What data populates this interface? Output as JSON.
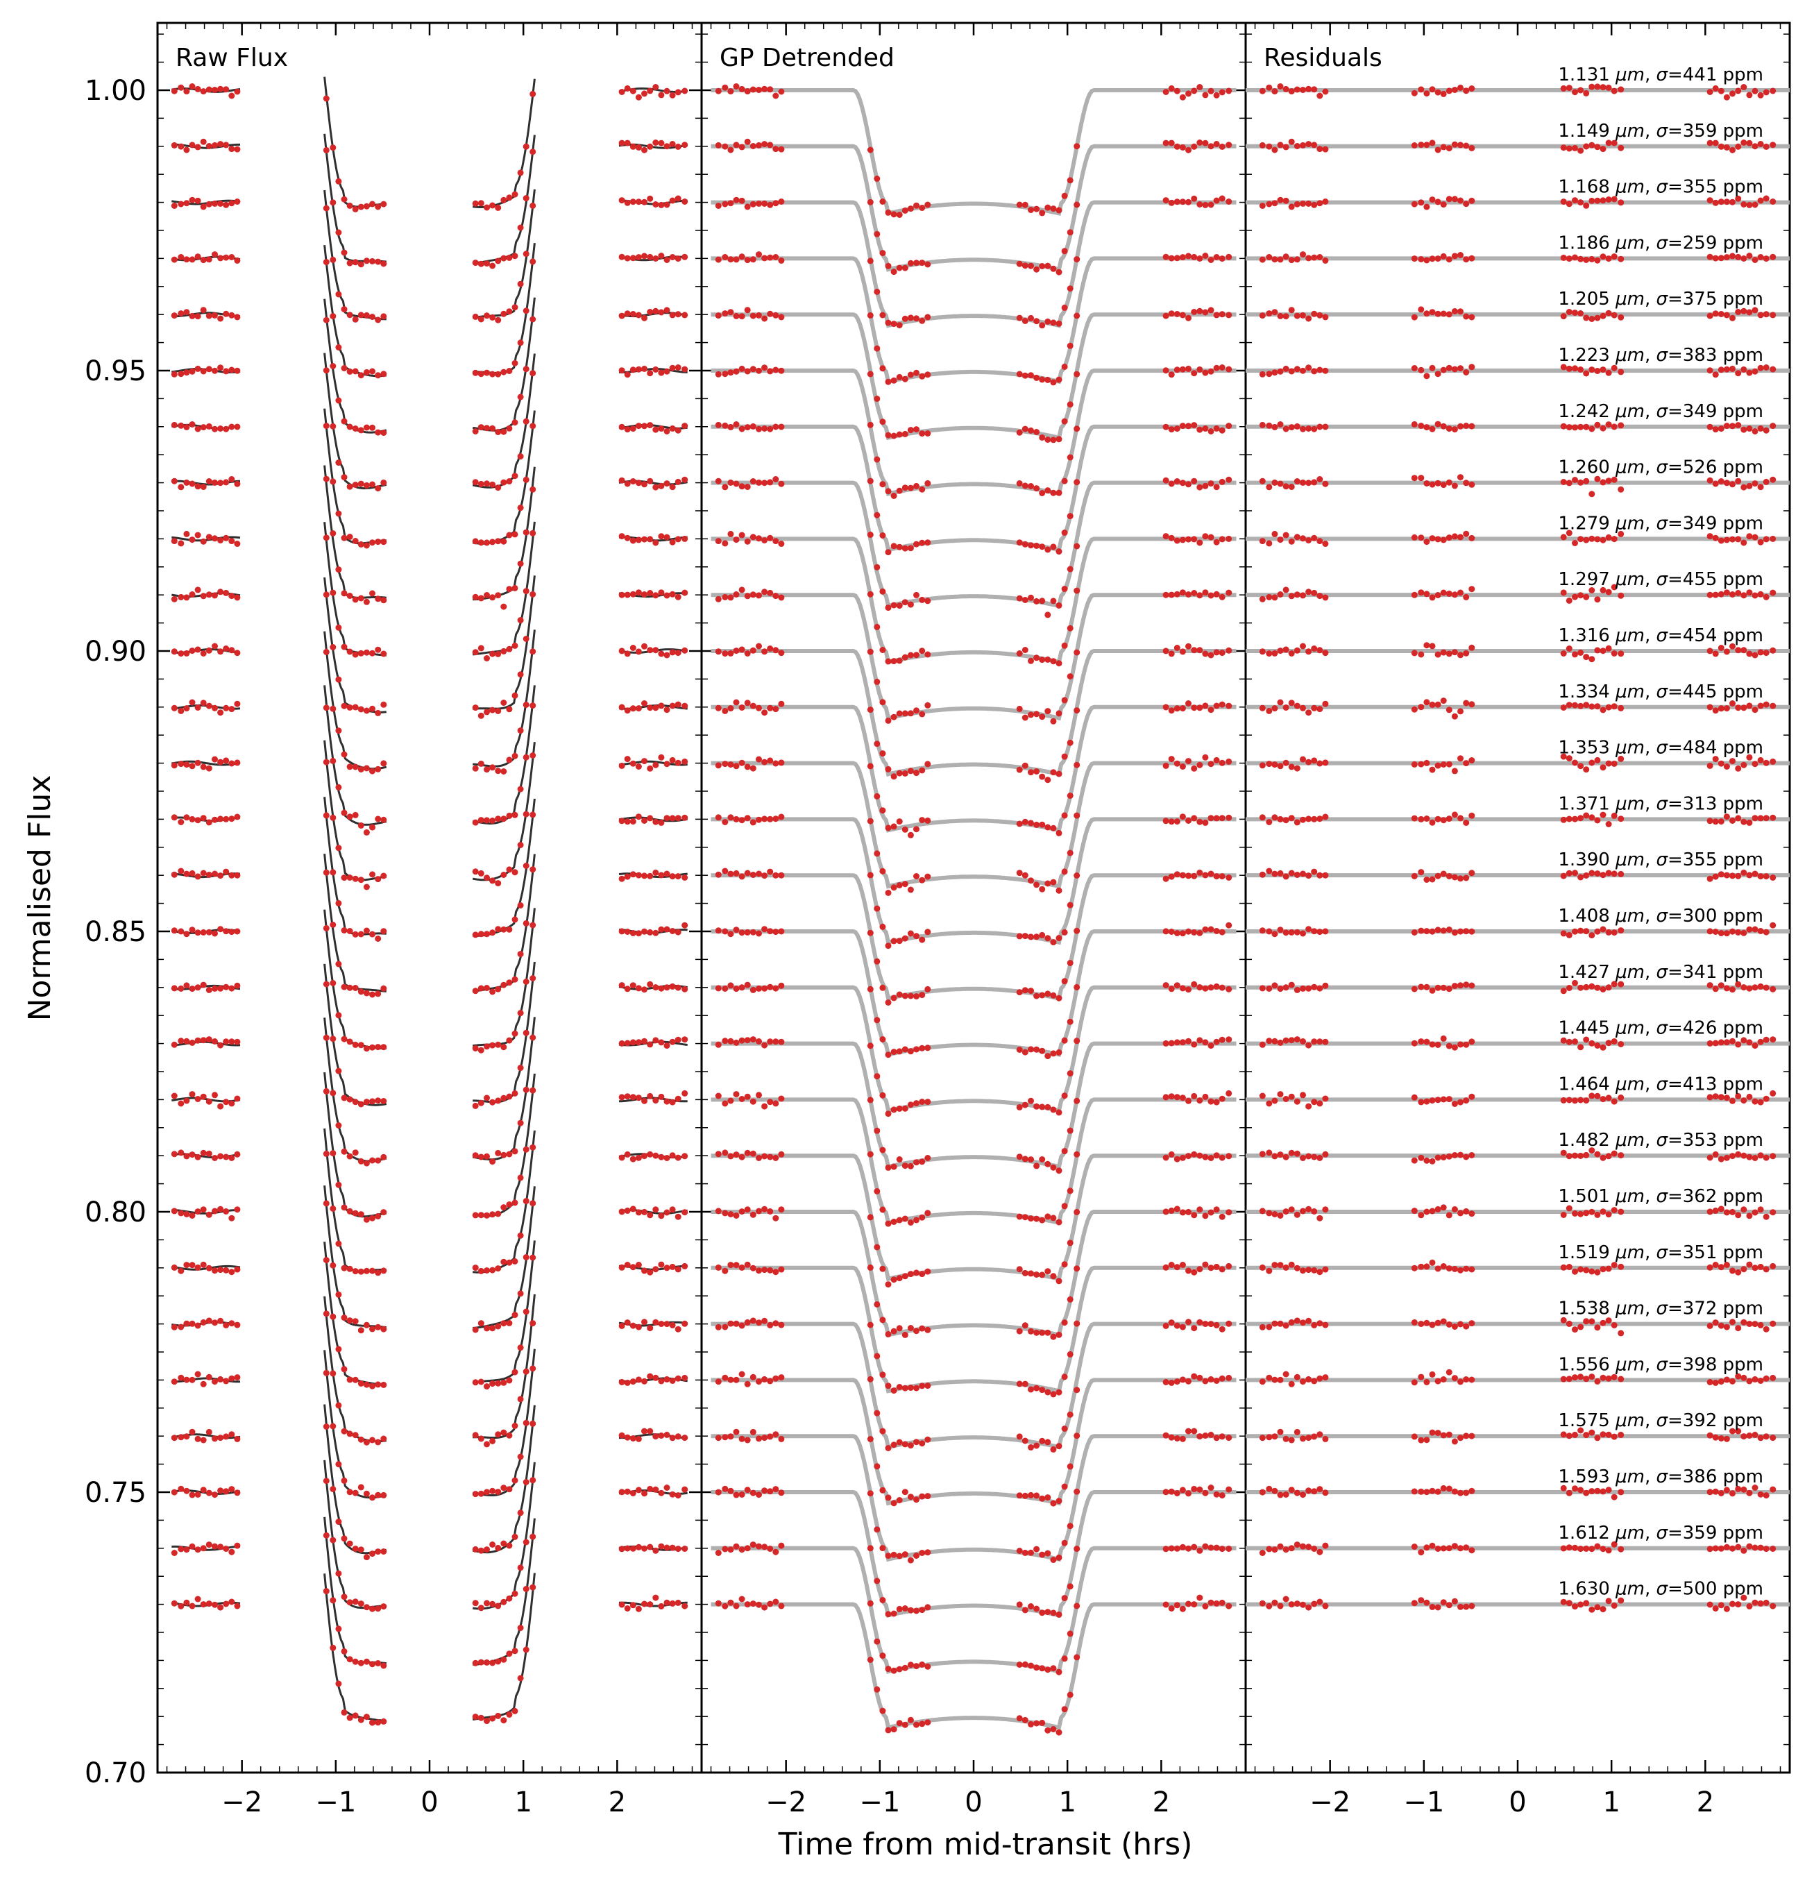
{
  "figure": {
    "ylabel": "Normalised Flux",
    "xlabel": "Time from mid-transit (hrs)"
  },
  "chart_data": {
    "type": "scatter",
    "description_of_series": "Stacked spectroscopic light curves, one per wavelength bin, each offset by -0.01 in normalised flux; raw flux with GP fit, GP-detrended flux with transit model, and residuals.",
    "panels": [
      {
        "title": "Raw Flux"
      },
      {
        "title": "GP Detrended"
      },
      {
        "title": "Residuals"
      }
    ],
    "xlim": [
      -2.9,
      2.9
    ],
    "ylim": [
      0.7,
      1.012
    ],
    "x_ticks": [
      -2,
      -1,
      0,
      1,
      2
    ],
    "x_tick_labels": [
      "−2",
      "−1",
      "0",
      "1",
      "2"
    ],
    "y_ticks": [
      0.7,
      0.75,
      0.8,
      0.85,
      0.9,
      0.95,
      1.0
    ],
    "y_tick_labels": [
      "0.70",
      "0.75",
      "0.80",
      "0.85",
      "0.90",
      "0.95",
      "1.00"
    ],
    "offset_step": -0.01,
    "transit_depth": 0.022,
    "ingress_start_hrs": 1.28,
    "ingress_end_hrs": 0.92,
    "data_x_hrs": [
      -2.72,
      -2.65,
      -2.59,
      -2.53,
      -2.47,
      -2.41,
      -2.35,
      -2.29,
      -2.23,
      -2.17,
      -2.11,
      -2.05,
      -1.1,
      -1.03,
      -0.97,
      -0.91,
      -0.85,
      -0.79,
      -0.73,
      -0.67,
      -0.61,
      -0.55,
      -0.49,
      0.49,
      0.55,
      0.61,
      0.67,
      0.73,
      0.79,
      0.85,
      0.91,
      0.97,
      1.03,
      1.1,
      2.05,
      2.11,
      2.17,
      2.23,
      2.29,
      2.35,
      2.41,
      2.47,
      2.53,
      2.59,
      2.65,
      2.72
    ],
    "bins": [
      {
        "wavelength": "1.131",
        "sigma_ppm": 441,
        "offset": 1.0
      },
      {
        "wavelength": "1.149",
        "sigma_ppm": 359,
        "offset": 0.99
      },
      {
        "wavelength": "1.168",
        "sigma_ppm": 355,
        "offset": 0.98
      },
      {
        "wavelength": "1.186",
        "sigma_ppm": 259,
        "offset": 0.97
      },
      {
        "wavelength": "1.205",
        "sigma_ppm": 375,
        "offset": 0.96
      },
      {
        "wavelength": "1.223",
        "sigma_ppm": 383,
        "offset": 0.95
      },
      {
        "wavelength": "1.242",
        "sigma_ppm": 349,
        "offset": 0.94
      },
      {
        "wavelength": "1.260",
        "sigma_ppm": 526,
        "offset": 0.93
      },
      {
        "wavelength": "1.279",
        "sigma_ppm": 349,
        "offset": 0.92
      },
      {
        "wavelength": "1.297",
        "sigma_ppm": 455,
        "offset": 0.91
      },
      {
        "wavelength": "1.316",
        "sigma_ppm": 454,
        "offset": 0.9
      },
      {
        "wavelength": "1.334",
        "sigma_ppm": 445,
        "offset": 0.89
      },
      {
        "wavelength": "1.353",
        "sigma_ppm": 484,
        "offset": 0.88
      },
      {
        "wavelength": "1.371",
        "sigma_ppm": 313,
        "offset": 0.87
      },
      {
        "wavelength": "1.390",
        "sigma_ppm": 355,
        "offset": 0.86
      },
      {
        "wavelength": "1.408",
        "sigma_ppm": 300,
        "offset": 0.85
      },
      {
        "wavelength": "1.427",
        "sigma_ppm": 341,
        "offset": 0.84
      },
      {
        "wavelength": "1.445",
        "sigma_ppm": 426,
        "offset": 0.83
      },
      {
        "wavelength": "1.464",
        "sigma_ppm": 413,
        "offset": 0.82
      },
      {
        "wavelength": "1.482",
        "sigma_ppm": 353,
        "offset": 0.81
      },
      {
        "wavelength": "1.501",
        "sigma_ppm": 362,
        "offset": 0.8
      },
      {
        "wavelength": "1.519",
        "sigma_ppm": 351,
        "offset": 0.79
      },
      {
        "wavelength": "1.538",
        "sigma_ppm": 372,
        "offset": 0.78
      },
      {
        "wavelength": "1.556",
        "sigma_ppm": 398,
        "offset": 0.77
      },
      {
        "wavelength": "1.575",
        "sigma_ppm": 392,
        "offset": 0.76
      },
      {
        "wavelength": "1.593",
        "sigma_ppm": 386,
        "offset": 0.75
      },
      {
        "wavelength": "1.612",
        "sigma_ppm": 359,
        "offset": 0.74
      },
      {
        "wavelength": "1.630",
        "sigma_ppm": 500,
        "offset": 0.73
      }
    ],
    "colors": {
      "data_points": "#d62728",
      "gp_fit": "#303030",
      "transit_model": "#b0b0b0",
      "axes": "#000000"
    }
  }
}
